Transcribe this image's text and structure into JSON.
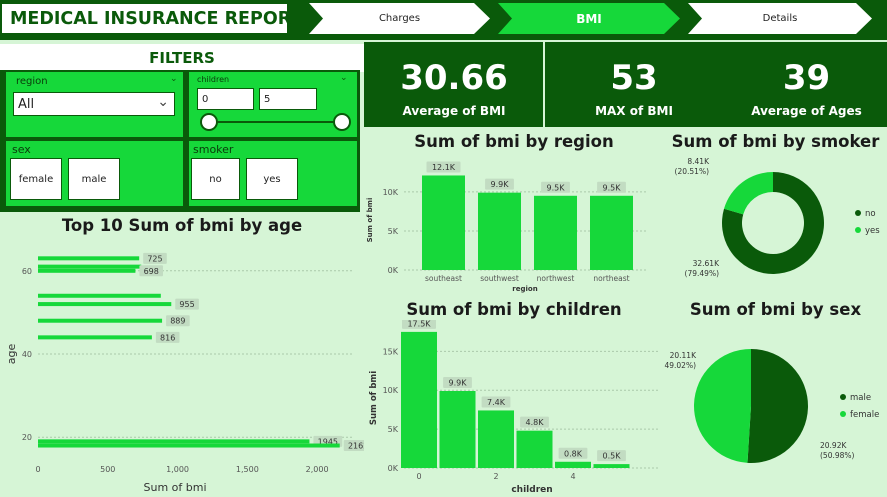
{
  "header": {
    "title": "MEDICAL INSURANCE REPORT",
    "tabs": [
      {
        "label": "Charges"
      },
      {
        "label": "BMI"
      },
      {
        "label": "Details"
      }
    ]
  },
  "colors": {
    "dark": "#0a5a0a",
    "accent": "#16d83a",
    "bg": "#d6f5d6"
  },
  "filters": {
    "title": "FILTERS",
    "region": {
      "label": "region",
      "value": "All"
    },
    "children": {
      "label": "children",
      "min": "0",
      "max": "5"
    },
    "sex": {
      "label": "sex",
      "options": [
        "female",
        "male"
      ]
    },
    "smoker": {
      "label": "smoker",
      "options": [
        "no",
        "yes"
      ]
    }
  },
  "kpis": [
    {
      "value": "30.66",
      "label": "Average of BMI"
    },
    {
      "value": "53",
      "label": "MAX of BMI"
    },
    {
      "value": "39",
      "label": "Average of Ages"
    }
  ],
  "chart_data": [
    {
      "type": "bar",
      "orientation": "horizontal",
      "title": "Top 10 Sum of bmi by age",
      "xlabel": "Sum of bmi",
      "ylabel": "age",
      "xlim": [
        0,
        2250
      ],
      "xticks": [
        "0",
        "500",
        "1,000",
        "1,500",
        "2,000"
      ],
      "yticks": [
        "20",
        "40",
        "60"
      ],
      "bars": [
        {
          "age": 63,
          "value": 725,
          "label": "725"
        },
        {
          "age": 61,
          "value": 740,
          "label": ""
        },
        {
          "age": 60,
          "value": 698,
          "label": "698"
        },
        {
          "age": 54,
          "value": 880,
          "label": ""
        },
        {
          "age": 52,
          "value": 955,
          "label": "955"
        },
        {
          "age": 48,
          "value": 889,
          "label": "889"
        },
        {
          "age": 44,
          "value": 816,
          "label": "816"
        },
        {
          "age": 19,
          "value": 1945,
          "label": "1945"
        },
        {
          "age": 18,
          "value": 2162,
          "label": "2162"
        }
      ]
    },
    {
      "type": "bar",
      "title": "Sum of bmi by region",
      "xlabel": "region",
      "ylabel": "Sum of bmi",
      "ylim": [
        0,
        12800
      ],
      "yticks": [
        "0K",
        "5K",
        "10K"
      ],
      "categories": [
        "southeast",
        "southwest",
        "northwest",
        "northeast"
      ],
      "values": [
        12100,
        9900,
        9500,
        9500
      ],
      "labels": [
        "12.1K",
        "9.9K",
        "9.5K",
        "9.5K"
      ]
    },
    {
      "type": "pie",
      "title": "Sum of bmi by smoker",
      "donut": true,
      "slices": [
        {
          "name": "no",
          "value": 32.61,
          "label": "32.61K",
          "pct": "(79.49%)",
          "color": "#0a5a0a"
        },
        {
          "name": "yes",
          "value": 8.41,
          "label": "8.41K",
          "pct": "(20.51%)",
          "color": "#16d83a"
        }
      ]
    },
    {
      "type": "bar",
      "title": "Sum of bmi by children",
      "xlabel": "children",
      "ylabel": "Sum of bmi",
      "ylim": [
        0,
        18000
      ],
      "yticks": [
        "0K",
        "5K",
        "10K",
        "15K"
      ],
      "xticks": [
        "0",
        "2",
        "4"
      ],
      "categories": [
        "0",
        "1",
        "2",
        "3",
        "4",
        "5"
      ],
      "values": [
        17500,
        9900,
        7400,
        4800,
        800,
        500
      ],
      "labels": [
        "17.5K",
        "9.9K",
        "7.4K",
        "4.8K",
        "0.8K",
        "0.5K"
      ]
    },
    {
      "type": "pie",
      "title": "Sum of bmi by sex",
      "slices": [
        {
          "name": "male",
          "value": 20.92,
          "label": "20.92K",
          "pct": "(50.98%)",
          "color": "#0a5a0a"
        },
        {
          "name": "female",
          "value": 20.11,
          "label": "20.11K",
          "pct": "(49.02%)",
          "color": "#16d83a"
        }
      ]
    }
  ]
}
